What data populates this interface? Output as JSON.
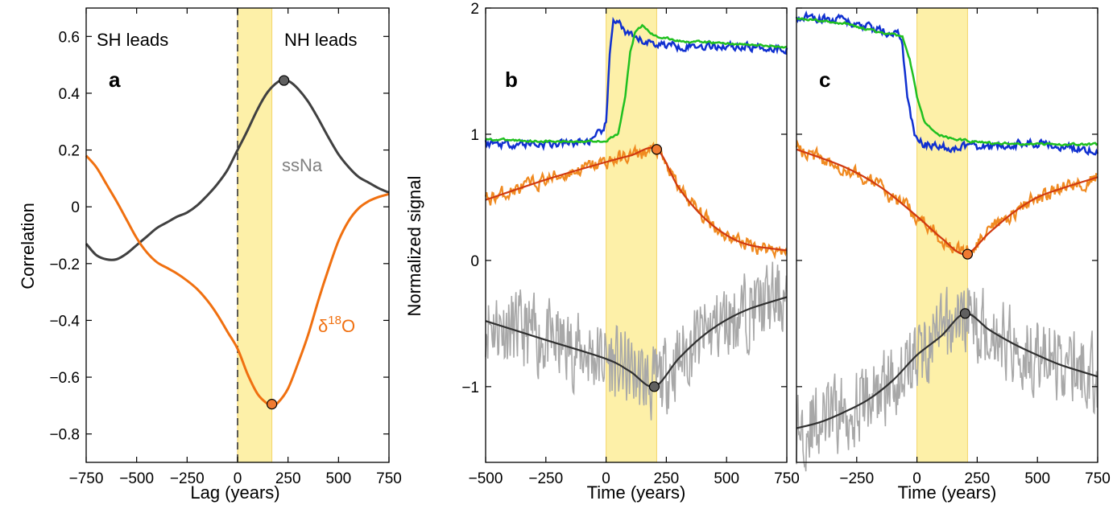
{
  "colors": {
    "band": "#fdf0a8",
    "band_edge": "#f3d56a",
    "ssna_a": "#404040",
    "d18o_a": "#f07010",
    "blue": "#1030d0",
    "green": "#20c020",
    "orange": "#f08a20",
    "red": "#d03a10",
    "grey_raw": "#a8a8a8",
    "black_fit": "#303030",
    "marker_dark": "#606060",
    "marker_orange": "#f07a30"
  },
  "chart_data": [
    {
      "panel": "a",
      "type": "line",
      "xlabel": "Lag (years)",
      "ylabel": "Correlation",
      "xlim": [
        -750,
        750
      ],
      "ylim": [
        -0.9,
        0.7
      ],
      "xticks": [
        "−750",
        "−500",
        "−250",
        "0",
        "250",
        "500",
        "750"
      ],
      "yticks": [
        "−0.8",
        "−0.6",
        "−0.4",
        "−0.2",
        "0",
        "0.2",
        "0.4",
        "0.6"
      ],
      "shaded_band": [
        0,
        170
      ],
      "dashed_vline": 0,
      "annotations": {
        "left": "SH leads",
        "right": "NH leads",
        "letter": "a"
      },
      "series": [
        {
          "name": "ssNa",
          "color_key": "ssna_a",
          "x": [
            -750,
            -700,
            -650,
            -600,
            -550,
            -500,
            -450,
            -400,
            -350,
            -300,
            -250,
            -200,
            -150,
            -100,
            -50,
            0,
            50,
            100,
            150,
            200,
            230,
            260,
            300,
            350,
            400,
            450,
            500,
            550,
            600,
            650,
            700,
            750
          ],
          "y": [
            -0.13,
            -0.17,
            -0.185,
            -0.185,
            -0.165,
            -0.135,
            -0.105,
            -0.075,
            -0.055,
            -0.035,
            -0.02,
            0.005,
            0.04,
            0.08,
            0.13,
            0.2,
            0.27,
            0.345,
            0.405,
            0.44,
            0.445,
            0.44,
            0.415,
            0.37,
            0.31,
            0.245,
            0.185,
            0.14,
            0.105,
            0.085,
            0.065,
            0.05
          ],
          "marker": {
            "x": 230,
            "y": 0.445
          }
        },
        {
          "name": "δ18O",
          "color_key": "d18o_a",
          "x": [
            -750,
            -700,
            -650,
            -600,
            -550,
            -500,
            -450,
            -400,
            -350,
            -300,
            -250,
            -200,
            -150,
            -100,
            -50,
            0,
            50,
            100,
            150,
            170,
            200,
            250,
            300,
            350,
            400,
            450,
            500,
            550,
            600,
            650,
            700,
            750
          ],
          "y": [
            0.18,
            0.14,
            0.08,
            0.02,
            -0.045,
            -0.11,
            -0.16,
            -0.195,
            -0.215,
            -0.235,
            -0.26,
            -0.29,
            -0.33,
            -0.38,
            -0.44,
            -0.5,
            -0.59,
            -0.66,
            -0.695,
            -0.7,
            -0.69,
            -0.64,
            -0.55,
            -0.45,
            -0.33,
            -0.22,
            -0.12,
            -0.05,
            -0.005,
            0.02,
            0.035,
            0.045
          ],
          "marker": {
            "x": 170,
            "y": -0.695
          }
        }
      ],
      "series_labels": {
        "ssNa": "ssNa",
        "d18o_base": "δ",
        "d18o_sup": "18",
        "d18o_tail": "O"
      }
    },
    {
      "panel": "b",
      "type": "line",
      "xlabel": "Time (years)",
      "ylabel": "Normalized signal",
      "xlim": [
        -500,
        750
      ],
      "ylim": [
        -1.6,
        2.0
      ],
      "xticks": [
        "−500",
        "−250",
        "0",
        "250",
        "500",
        "750"
      ],
      "yticks": [
        "−1",
        "0",
        "1",
        "2"
      ],
      "shaded_band": [
        0,
        210
      ],
      "annotations": {
        "letter": "b"
      },
      "blue": {
        "x": [
          -500,
          -200,
          -50,
          0,
          15,
          30,
          50,
          80,
          120,
          200,
          300,
          500,
          750
        ],
        "y": [
          0.93,
          0.92,
          0.95,
          1.08,
          1.6,
          1.92,
          1.9,
          1.8,
          1.75,
          1.72,
          1.7,
          1.7,
          1.68
        ]
      },
      "green": {
        "x": [
          -500,
          -200,
          0,
          50,
          80,
          100,
          120,
          150,
          200,
          300,
          500,
          750
        ],
        "y": [
          0.96,
          0.94,
          0.95,
          1.0,
          1.3,
          1.65,
          1.8,
          1.86,
          1.78,
          1.74,
          1.72,
          1.69
        ]
      },
      "orange_fit": {
        "x": [
          -500,
          -250,
          0,
          100,
          210,
          300,
          400,
          500,
          600,
          750
        ],
        "y": [
          0.48,
          0.64,
          0.78,
          0.83,
          0.88,
          0.58,
          0.35,
          0.2,
          0.12,
          0.08
        ]
      },
      "grey_fit": {
        "x": [
          -500,
          -250,
          0,
          100,
          200,
          300,
          400,
          500,
          600,
          750
        ],
        "y": [
          -0.48,
          -0.63,
          -0.78,
          -0.88,
          -1.0,
          -0.78,
          -0.6,
          -0.47,
          -0.38,
          -0.29
        ]
      },
      "markers": [
        {
          "series": "orange",
          "x": 210,
          "y": 0.88
        },
        {
          "series": "grey",
          "x": 200,
          "y": -1.0
        }
      ]
    },
    {
      "panel": "c",
      "type": "line",
      "xlabel": "Time (years)",
      "ylabel": "",
      "xlim": [
        -500,
        750
      ],
      "ylim": [
        -1.6,
        2.0
      ],
      "xticks": [
        "−250",
        "0",
        "250",
        "500",
        "750"
      ],
      "yticks": [],
      "shaded_band": [
        0,
        210
      ],
      "annotations": {
        "letter": "c"
      },
      "blue": {
        "x": [
          -500,
          -300,
          -150,
          -80,
          -60,
          -40,
          -10,
          20,
          100,
          300,
          500,
          750
        ],
        "y": [
          1.93,
          1.9,
          1.82,
          1.8,
          1.7,
          1.3,
          1.0,
          0.92,
          0.9,
          0.9,
          0.93,
          0.87
        ]
      },
      "green": {
        "x": [
          -500,
          -300,
          -150,
          -60,
          -30,
          0,
          30,
          80,
          150,
          300,
          500,
          750
        ],
        "y": [
          1.92,
          1.88,
          1.8,
          1.78,
          1.6,
          1.3,
          1.1,
          1.0,
          0.96,
          0.93,
          0.92,
          0.92
        ]
      },
      "orange_fit": {
        "x": [
          -500,
          -300,
          -150,
          0,
          100,
          200,
          300,
          400,
          500,
          600,
          750
        ],
        "y": [
          0.88,
          0.74,
          0.58,
          0.35,
          0.18,
          0.05,
          0.22,
          0.38,
          0.5,
          0.57,
          0.66
        ]
      },
      "grey_fit": {
        "x": [
          -500,
          -400,
          -300,
          -200,
          -100,
          0,
          100,
          200,
          300,
          400,
          500,
          600,
          750
        ],
        "y": [
          -1.33,
          -1.28,
          -1.2,
          -1.1,
          -0.95,
          -0.75,
          -0.6,
          -0.42,
          -0.55,
          -0.66,
          -0.75,
          -0.83,
          -0.92
        ]
      },
      "markers": [
        {
          "series": "orange",
          "x": 210,
          "y": 0.05
        },
        {
          "series": "grey",
          "x": 200,
          "y": -0.42
        }
      ]
    }
  ]
}
